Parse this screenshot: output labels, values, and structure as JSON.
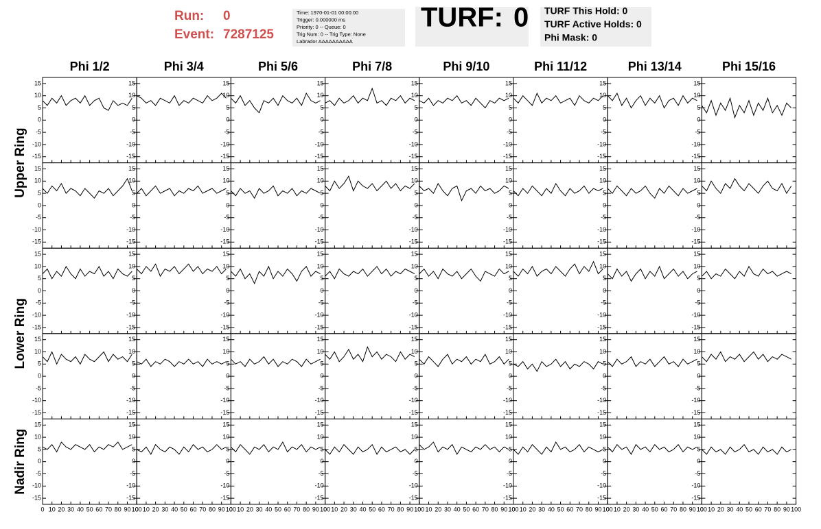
{
  "header": {
    "run_label": "Run:",
    "run": 0,
    "event_label": "Event:",
    "event": 7287125,
    "info": [
      "Time: 1970-01-01 00:00:00",
      "Trigger: 0.000000 ms",
      "Priority: 0 -- Queue: 0",
      "Trig Num: 0 -- Trig Type: None",
      "Labrador AAAAAAAAAA"
    ],
    "turf_label": "TURF:",
    "turf": 0,
    "turf_info": [
      "TURF This Hold: 0",
      "TURF Active Holds: 0",
      "Phi Mask: 0"
    ]
  },
  "columns": [
    "Phi 1/2",
    "Phi 3/4",
    "Phi 5/6",
    "Phi 7/8",
    "Phi 9/10",
    "Phi 11/12",
    "Phi 13/14",
    "Phi 15/16"
  ],
  "ring_labels": [
    "Upper Ring",
    "Lower Ring",
    "Nadir Ring"
  ],
  "chart_data": {
    "type": "line",
    "color": "#000000",
    "xlim": [
      0,
      100
    ],
    "ylim": [
      -17.5,
      17.5
    ],
    "xticks": [
      0,
      10,
      20,
      30,
      40,
      50,
      60,
      70,
      80,
      90,
      100
    ],
    "yticks": [
      -15,
      -10,
      -5,
      0,
      5,
      10,
      15
    ],
    "x": [
      0,
      5,
      10,
      15,
      20,
      25,
      30,
      35,
      40,
      45,
      50,
      55,
      60,
      65,
      70,
      75,
      80,
      85,
      90,
      95
    ],
    "panels": [
      [
        8,
        6,
        9,
        7,
        10,
        6,
        8,
        9,
        7,
        10,
        6,
        8,
        9,
        5,
        4,
        8,
        6,
        7,
        6,
        9
      ],
      [
        10,
        9,
        7,
        8,
        6,
        9,
        8,
        7,
        10,
        6,
        8,
        7,
        9,
        8,
        7,
        10,
        8,
        9,
        11,
        9
      ],
      [
        9,
        7,
        10,
        6,
        8,
        5,
        3,
        8,
        7,
        9,
        6,
        10,
        8,
        7,
        9,
        6,
        11,
        8,
        7,
        8
      ],
      [
        7,
        8,
        6,
        9,
        7,
        8,
        10,
        7,
        9,
        8,
        13,
        7,
        8,
        6,
        9,
        8,
        10,
        7,
        9,
        8
      ],
      [
        8,
        7,
        9,
        6,
        8,
        7,
        9,
        8,
        10,
        7,
        8,
        6,
        9,
        7,
        5,
        8,
        7,
        9,
        8,
        9
      ],
      [
        9,
        7,
        10,
        8,
        6,
        11,
        7,
        9,
        8,
        10,
        7,
        8,
        9,
        6,
        10,
        8,
        7,
        9,
        8,
        10
      ],
      [
        10,
        8,
        11,
        6,
        9,
        5,
        8,
        10,
        6,
        9,
        7,
        10,
        5,
        8,
        9,
        6,
        10,
        7,
        9,
        8
      ],
      [
        6,
        3,
        8,
        2,
        7,
        4,
        9,
        1,
        6,
        3,
        8,
        2,
        7,
        4,
        9,
        3,
        6,
        2,
        7,
        5
      ],
      [
        7,
        5,
        8,
        6,
        9,
        5,
        7,
        6,
        4,
        7,
        5,
        3,
        6,
        5,
        7,
        4,
        6,
        8,
        11,
        6
      ],
      [
        5,
        7,
        4,
        6,
        8,
        5,
        6,
        7,
        4,
        6,
        5,
        7,
        6,
        8,
        5,
        6,
        7,
        5,
        6,
        7
      ],
      [
        6,
        4,
        7,
        5,
        6,
        3,
        7,
        5,
        6,
        8,
        4,
        6,
        5,
        7,
        4,
        6,
        5,
        7,
        6,
        5
      ],
      [
        8,
        6,
        10,
        7,
        9,
        12,
        6,
        10,
        8,
        7,
        9,
        6,
        8,
        10,
        7,
        9,
        6,
        8,
        7,
        9
      ],
      [
        8,
        6,
        7,
        5,
        9,
        6,
        4,
        7,
        8,
        2,
        6,
        7,
        5,
        8,
        6,
        7,
        5,
        6,
        8,
        7
      ],
      [
        6,
        4,
        7,
        5,
        8,
        6,
        4,
        7,
        5,
        9,
        6,
        4,
        7,
        5,
        6,
        8,
        5,
        7,
        6,
        7
      ],
      [
        7,
        5,
        8,
        6,
        4,
        7,
        5,
        6,
        8,
        5,
        3,
        7,
        5,
        8,
        6,
        4,
        7,
        5,
        6,
        7
      ],
      [
        8,
        6,
        10,
        7,
        5,
        9,
        7,
        11,
        8,
        6,
        9,
        7,
        5,
        8,
        10,
        7,
        6,
        9,
        5,
        8
      ],
      [
        7,
        9,
        5,
        8,
        6,
        10,
        7,
        5,
        9,
        6,
        8,
        7,
        10,
        6,
        8,
        5,
        9,
        7,
        6,
        8
      ],
      [
        9,
        7,
        10,
        8,
        11,
        6,
        9,
        8,
        10,
        7,
        9,
        11,
        8,
        10,
        7,
        9,
        8,
        10,
        7,
        9
      ],
      [
        8,
        6,
        9,
        5,
        7,
        3,
        8,
        6,
        10,
        5,
        8,
        6,
        9,
        7,
        4,
        8,
        10,
        6,
        8,
        7
      ],
      [
        6,
        8,
        5,
        9,
        7,
        6,
        8,
        7,
        9,
        6,
        8,
        10,
        7,
        9,
        6,
        8,
        7,
        9,
        8,
        7
      ],
      [
        7,
        9,
        6,
        8,
        5,
        9,
        7,
        6,
        8,
        5,
        7,
        9,
        6,
        4,
        8,
        7,
        6,
        9,
        7,
        8
      ],
      [
        8,
        6,
        9,
        7,
        10,
        6,
        8,
        9,
        7,
        10,
        8,
        6,
        9,
        11,
        7,
        10,
        8,
        12,
        7,
        9
      ],
      [
        7,
        5,
        9,
        6,
        8,
        4,
        7,
        9,
        5,
        8,
        6,
        10,
        5,
        7,
        9,
        6,
        8,
        5,
        7,
        8
      ],
      [
        6,
        8,
        5,
        7,
        6,
        9,
        7,
        5,
        8,
        6,
        10,
        7,
        6,
        9,
        7,
        8,
        6,
        7,
        8,
        7
      ],
      [
        8,
        6,
        10,
        5,
        9,
        7,
        6,
        8,
        5,
        9,
        7,
        6,
        8,
        10,
        6,
        9,
        7,
        8,
        6,
        9
      ],
      [
        6,
        5,
        7,
        4,
        6,
        5,
        7,
        6,
        4,
        6,
        5,
        7,
        5,
        6,
        4,
        7,
        5,
        6,
        5,
        6
      ],
      [
        7,
        5,
        6,
        4,
        7,
        5,
        6,
        8,
        5,
        7,
        4,
        6,
        5,
        7,
        6,
        4,
        7,
        5,
        6,
        7
      ],
      [
        9,
        7,
        10,
        6,
        8,
        11,
        7,
        9,
        6,
        12,
        8,
        10,
        7,
        9,
        8,
        6,
        10,
        7,
        9,
        8
      ],
      [
        7,
        5,
        8,
        6,
        4,
        7,
        9,
        5,
        7,
        6,
        8,
        5,
        7,
        6,
        9,
        5,
        6,
        8,
        5,
        7
      ],
      [
        5,
        4,
        6,
        3,
        5,
        2,
        6,
        4,
        5,
        7,
        4,
        6,
        3,
        5,
        4,
        6,
        5,
        3,
        6,
        5
      ],
      [
        6,
        4,
        7,
        5,
        6,
        8,
        4,
        6,
        5,
        7,
        4,
        6,
        8,
        5,
        6,
        4,
        7,
        5,
        6,
        7
      ],
      [
        8,
        6,
        9,
        7,
        10,
        6,
        8,
        7,
        9,
        6,
        8,
        10,
        7,
        9,
        6,
        8,
        7,
        9,
        8,
        7
      ],
      [
        6,
        5,
        7,
        4,
        8,
        6,
        5,
        7,
        6,
        5,
        7,
        4,
        6,
        5,
        7,
        6,
        8,
        5,
        6,
        7
      ],
      [
        5,
        4,
        6,
        3,
        7,
        5,
        4,
        6,
        5,
        3,
        6,
        4,
        7,
        5,
        6,
        4,
        5,
        7,
        5,
        6
      ],
      [
        6,
        4,
        7,
        5,
        3,
        6,
        5,
        7,
        4,
        6,
        5,
        8,
        4,
        6,
        5,
        7,
        4,
        6,
        5,
        6
      ],
      [
        5,
        3,
        6,
        4,
        7,
        5,
        3,
        6,
        4,
        5,
        7,
        3,
        6,
        4,
        5,
        6,
        4,
        5,
        3,
        5
      ],
      [
        7,
        5,
        6,
        8,
        4,
        6,
        5,
        7,
        3,
        6,
        5,
        4,
        6,
        5,
        7,
        5,
        6,
        4,
        6,
        5
      ],
      [
        5,
        3,
        6,
        4,
        7,
        5,
        3,
        6,
        4,
        8,
        5,
        6,
        4,
        5,
        7,
        4,
        6,
        5,
        4,
        5
      ],
      [
        6,
        4,
        7,
        5,
        6,
        3,
        7,
        5,
        6,
        4,
        7,
        5,
        6,
        4,
        5,
        7,
        4,
        6,
        5,
        6
      ],
      [
        5,
        3,
        6,
        4,
        5,
        3,
        6,
        4,
        5,
        7,
        4,
        5,
        3,
        6,
        4,
        5,
        3,
        6,
        4,
        5
      ]
    ]
  }
}
